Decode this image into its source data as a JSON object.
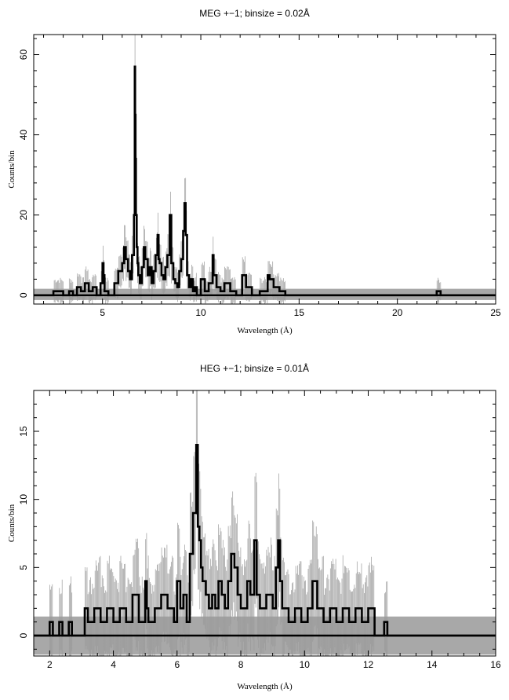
{
  "chart_data": [
    {
      "type": "line",
      "title": "MEG +−1; binsize = 0.02Å",
      "xlabel": "Wavelength (Å)",
      "ylabel": "Counts/bin",
      "xlim": [
        1.5,
        25
      ],
      "ylim": [
        -2.2,
        65
      ],
      "xticks": [
        5,
        10,
        15,
        20,
        25
      ],
      "yticks": [
        0,
        20,
        40,
        60
      ],
      "grid": false,
      "series": [
        {
          "style": "error-band",
          "color": "#a8a8a8",
          "x": [
            1.5,
            25
          ],
          "lower": [
            -1.2,
            -1.2
          ],
          "upper": [
            1.6,
            1.6
          ]
        },
        {
          "style": "step",
          "color": "#000000",
          "x": [
            1.5,
            2.0,
            2.5,
            3.0,
            3.3,
            3.5,
            3.7,
            3.9,
            4.1,
            4.3,
            4.5,
            4.7,
            4.9,
            5.0,
            5.05,
            5.1,
            5.3,
            5.6,
            5.8,
            6.0,
            6.1,
            6.18,
            6.3,
            6.4,
            6.5,
            6.6,
            6.64,
            6.66,
            6.68,
            6.7,
            6.74,
            6.78,
            6.82,
            6.9,
            7.0,
            7.1,
            7.17,
            7.3,
            7.4,
            7.5,
            7.6,
            7.7,
            7.8,
            7.85,
            7.9,
            8.0,
            8.1,
            8.2,
            8.3,
            8.42,
            8.5,
            8.6,
            8.7,
            8.8,
            8.9,
            9.0,
            9.1,
            9.17,
            9.23,
            9.3,
            9.4,
            9.5,
            9.6,
            9.7,
            9.8,
            10.0,
            10.2,
            10.4,
            10.6,
            10.65,
            10.8,
            11.0,
            11.2,
            11.5,
            11.8,
            12.1,
            12.3,
            12.6,
            13.0,
            13.4,
            13.5,
            13.7,
            14.0,
            14.3,
            14.8,
            15.3,
            15.8,
            17.5,
            17.8,
            18.0,
            19.2,
            19.8,
            20.4,
            21.9,
            22.0,
            22.2,
            23.4,
            23.9,
            25.0
          ],
          "values": [
            0,
            0,
            1,
            0,
            1,
            0,
            2,
            1,
            3,
            1,
            2,
            0,
            3,
            8,
            5,
            1,
            0,
            3,
            6,
            8,
            12,
            9,
            6,
            4,
            10,
            20,
            57,
            45,
            34,
            20,
            12,
            8,
            5,
            3,
            7,
            12,
            9,
            5,
            7,
            3,
            6,
            10,
            15,
            9,
            8,
            5,
            4,
            7,
            10,
            20,
            8,
            4,
            3,
            2,
            6,
            9,
            16,
            23,
            15,
            5,
            2,
            4,
            1,
            2,
            0,
            4,
            1,
            3,
            10,
            5,
            2,
            1,
            3,
            1,
            0,
            5,
            2,
            0,
            1,
            5,
            4,
            2,
            1,
            0,
            0,
            0,
            0,
            0,
            0,
            0,
            0,
            0,
            0,
            0,
            1,
            0,
            0,
            0,
            0
          ]
        }
      ]
    },
    {
      "type": "line",
      "title": "HEG +−1; binsize = 0.01Å",
      "xlabel": "Wavelength (Å)",
      "ylabel": "Counts/bin",
      "xlim": [
        1.5,
        16
      ],
      "ylim": [
        -1.5,
        18
      ],
      "xticks": [
        2,
        4,
        6,
        8,
        10,
        12,
        14,
        16
      ],
      "yticks": [
        0,
        5,
        10,
        15
      ],
      "grid": false,
      "series": [
        {
          "style": "error-band",
          "color": "#a8a8a8",
          "x": [
            1.5,
            16
          ],
          "lower": [
            -1.4,
            -1.4
          ],
          "upper": [
            1.4,
            1.4
          ]
        },
        {
          "style": "step",
          "color": "#000000",
          "x": [
            1.5,
            2.0,
            2.1,
            2.3,
            2.4,
            2.6,
            2.7,
            3.1,
            3.2,
            3.4,
            3.6,
            3.8,
            4.0,
            4.2,
            4.4,
            4.6,
            4.8,
            5.0,
            5.05,
            5.1,
            5.3,
            5.5,
            5.7,
            5.9,
            6.0,
            6.1,
            6.2,
            6.3,
            6.4,
            6.5,
            6.6,
            6.65,
            6.7,
            6.75,
            6.8,
            6.9,
            7.0,
            7.1,
            7.2,
            7.3,
            7.4,
            7.5,
            7.6,
            7.7,
            7.8,
            7.9,
            8.0,
            8.2,
            8.3,
            8.42,
            8.5,
            8.6,
            8.8,
            9.0,
            9.1,
            9.17,
            9.23,
            9.3,
            9.5,
            9.7,
            9.9,
            10.1,
            10.25,
            10.4,
            10.6,
            10.8,
            11.0,
            11.2,
            11.4,
            11.6,
            11.8,
            12.0,
            12.2,
            12.5,
            12.6,
            16.0
          ],
          "values": [
            0,
            1,
            0,
            1,
            0,
            1,
            0,
            2,
            1,
            2,
            1,
            2,
            1,
            2,
            1,
            3,
            1,
            4,
            2,
            1,
            2,
            3,
            2,
            1,
            4,
            2,
            3,
            1,
            6,
            9,
            14,
            8,
            7,
            5,
            4,
            3,
            2,
            3,
            2,
            4,
            3,
            2,
            4,
            6,
            5,
            3,
            2,
            4,
            3,
            7,
            3,
            2,
            3,
            2,
            5,
            7,
            4,
            2,
            1,
            2,
            1,
            2,
            4,
            2,
            1,
            2,
            1,
            2,
            1,
            2,
            1,
            2,
            0,
            1,
            0,
            0
          ]
        }
      ]
    }
  ]
}
